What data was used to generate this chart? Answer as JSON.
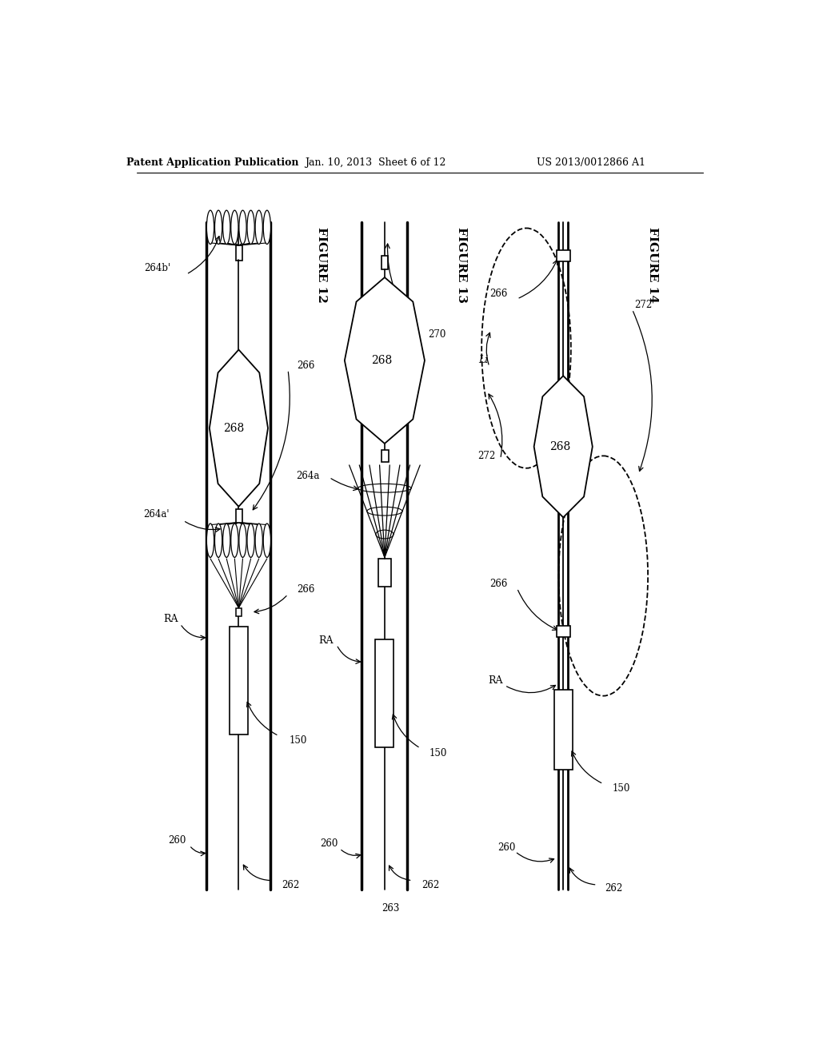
{
  "bg_color": "#ffffff",
  "header_left": "Patent Application Publication",
  "header_center": "Jan. 10, 2013  Sheet 6 of 12",
  "header_right": "US 2013/0012866 A1",
  "fig12_label": "FIGURE 12",
  "fig13_label": "FIGURE 13",
  "fig14_label": "FIGURE 14",
  "line_color": "#000000"
}
